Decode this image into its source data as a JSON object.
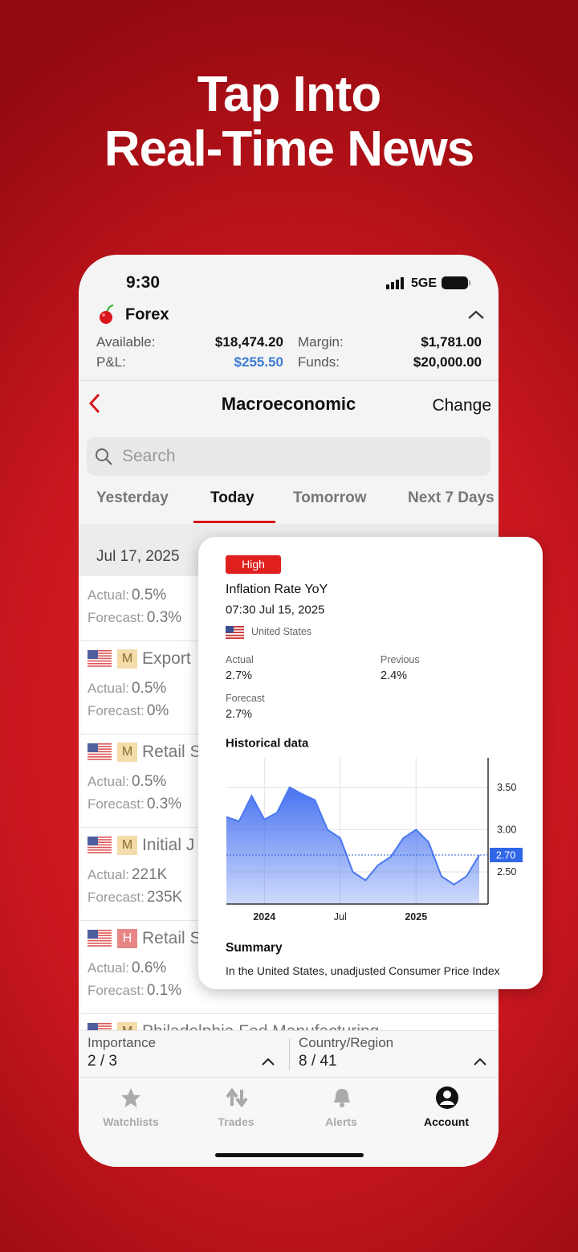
{
  "header": {
    "title_lines": [
      "Tap Into",
      "Real-Time News"
    ]
  },
  "status": {
    "time": "9:30",
    "network": "5GE"
  },
  "account": {
    "name": "Forex",
    "available_label": "Available:",
    "available": "$18,474.20",
    "margin_label": "Margin:",
    "margin": "$1,781.00",
    "pnl_label": "P&L:",
    "pnl": "$255.50",
    "funds_label": "Funds:",
    "funds": "$20,000.00"
  },
  "nav": {
    "title": "Macroeconomic",
    "action": "Change"
  },
  "search": {
    "placeholder": "Search"
  },
  "tabs": [
    "Yesterday",
    "Today",
    "Tomorrow",
    "Next 7 Days"
  ],
  "list": {
    "date": "Jul 17, 2025",
    "actual_label": "Actual:",
    "forecast_label": "Forecast:",
    "events": [
      {
        "actual": "0.5%",
        "forecast": "0.3%"
      },
      {
        "importance": "M",
        "title": "Export",
        "actual": "0.5%",
        "forecast": "0%"
      },
      {
        "importance": "M",
        "title": "Retail S",
        "actual": "0.5%",
        "forecast": "0.3%"
      },
      {
        "importance": "M",
        "title": "Initial J",
        "actual": "221K",
        "forecast": "235K"
      },
      {
        "importance": "H",
        "title": "Retail S",
        "actual": "0.6%",
        "forecast": "0.1%"
      },
      {
        "importance": "M",
        "title": "Philadelphia Fed Manufacturing"
      }
    ]
  },
  "filters": {
    "importance_label": "Importance",
    "importance": "2 / 3",
    "country_label": "Country/Region",
    "country": "8 / 41"
  },
  "tabbar": [
    "Watchlists",
    "Trades",
    "Alerts",
    "Account"
  ],
  "card": {
    "badge": "High",
    "title": "Inflation Rate YoY",
    "time": "07:30 Jul 15, 2025",
    "country": "United States",
    "actual_label": "Actual",
    "actual": "2.7%",
    "previous_label": "Previous",
    "previous": "2.4%",
    "forecast_label": "Forecast",
    "forecast": "2.7%",
    "historical_title": "Historical data",
    "summary_title": "Summary",
    "summary_text": "In the United States, unadjusted Consumer Price Index"
  },
  "chart_data": {
    "type": "area",
    "categories": [
      null,
      null,
      null,
      "2024",
      null,
      null,
      null,
      null,
      null,
      "Jul",
      null,
      null,
      null,
      null,
      null,
      "2025",
      null,
      null,
      null,
      null,
      null
    ],
    "values": [
      3.15,
      3.1,
      3.4,
      3.12,
      3.2,
      3.5,
      3.42,
      3.35,
      3.0,
      2.9,
      2.5,
      2.4,
      2.58,
      2.68,
      2.9,
      3.0,
      2.85,
      2.45,
      2.35,
      2.45,
      2.7
    ],
    "color": "#4a78f0",
    "ylim": [
      2.12,
      3.85
    ],
    "yticks": [
      {
        "value": 2.5,
        "label": "2.50"
      },
      {
        "value": 3.0,
        "label": "3.00"
      },
      {
        "value": 3.5,
        "label": "3.50"
      }
    ],
    "reference_line": {
      "value": 2.7,
      "label": "2.70"
    },
    "grid": true
  }
}
